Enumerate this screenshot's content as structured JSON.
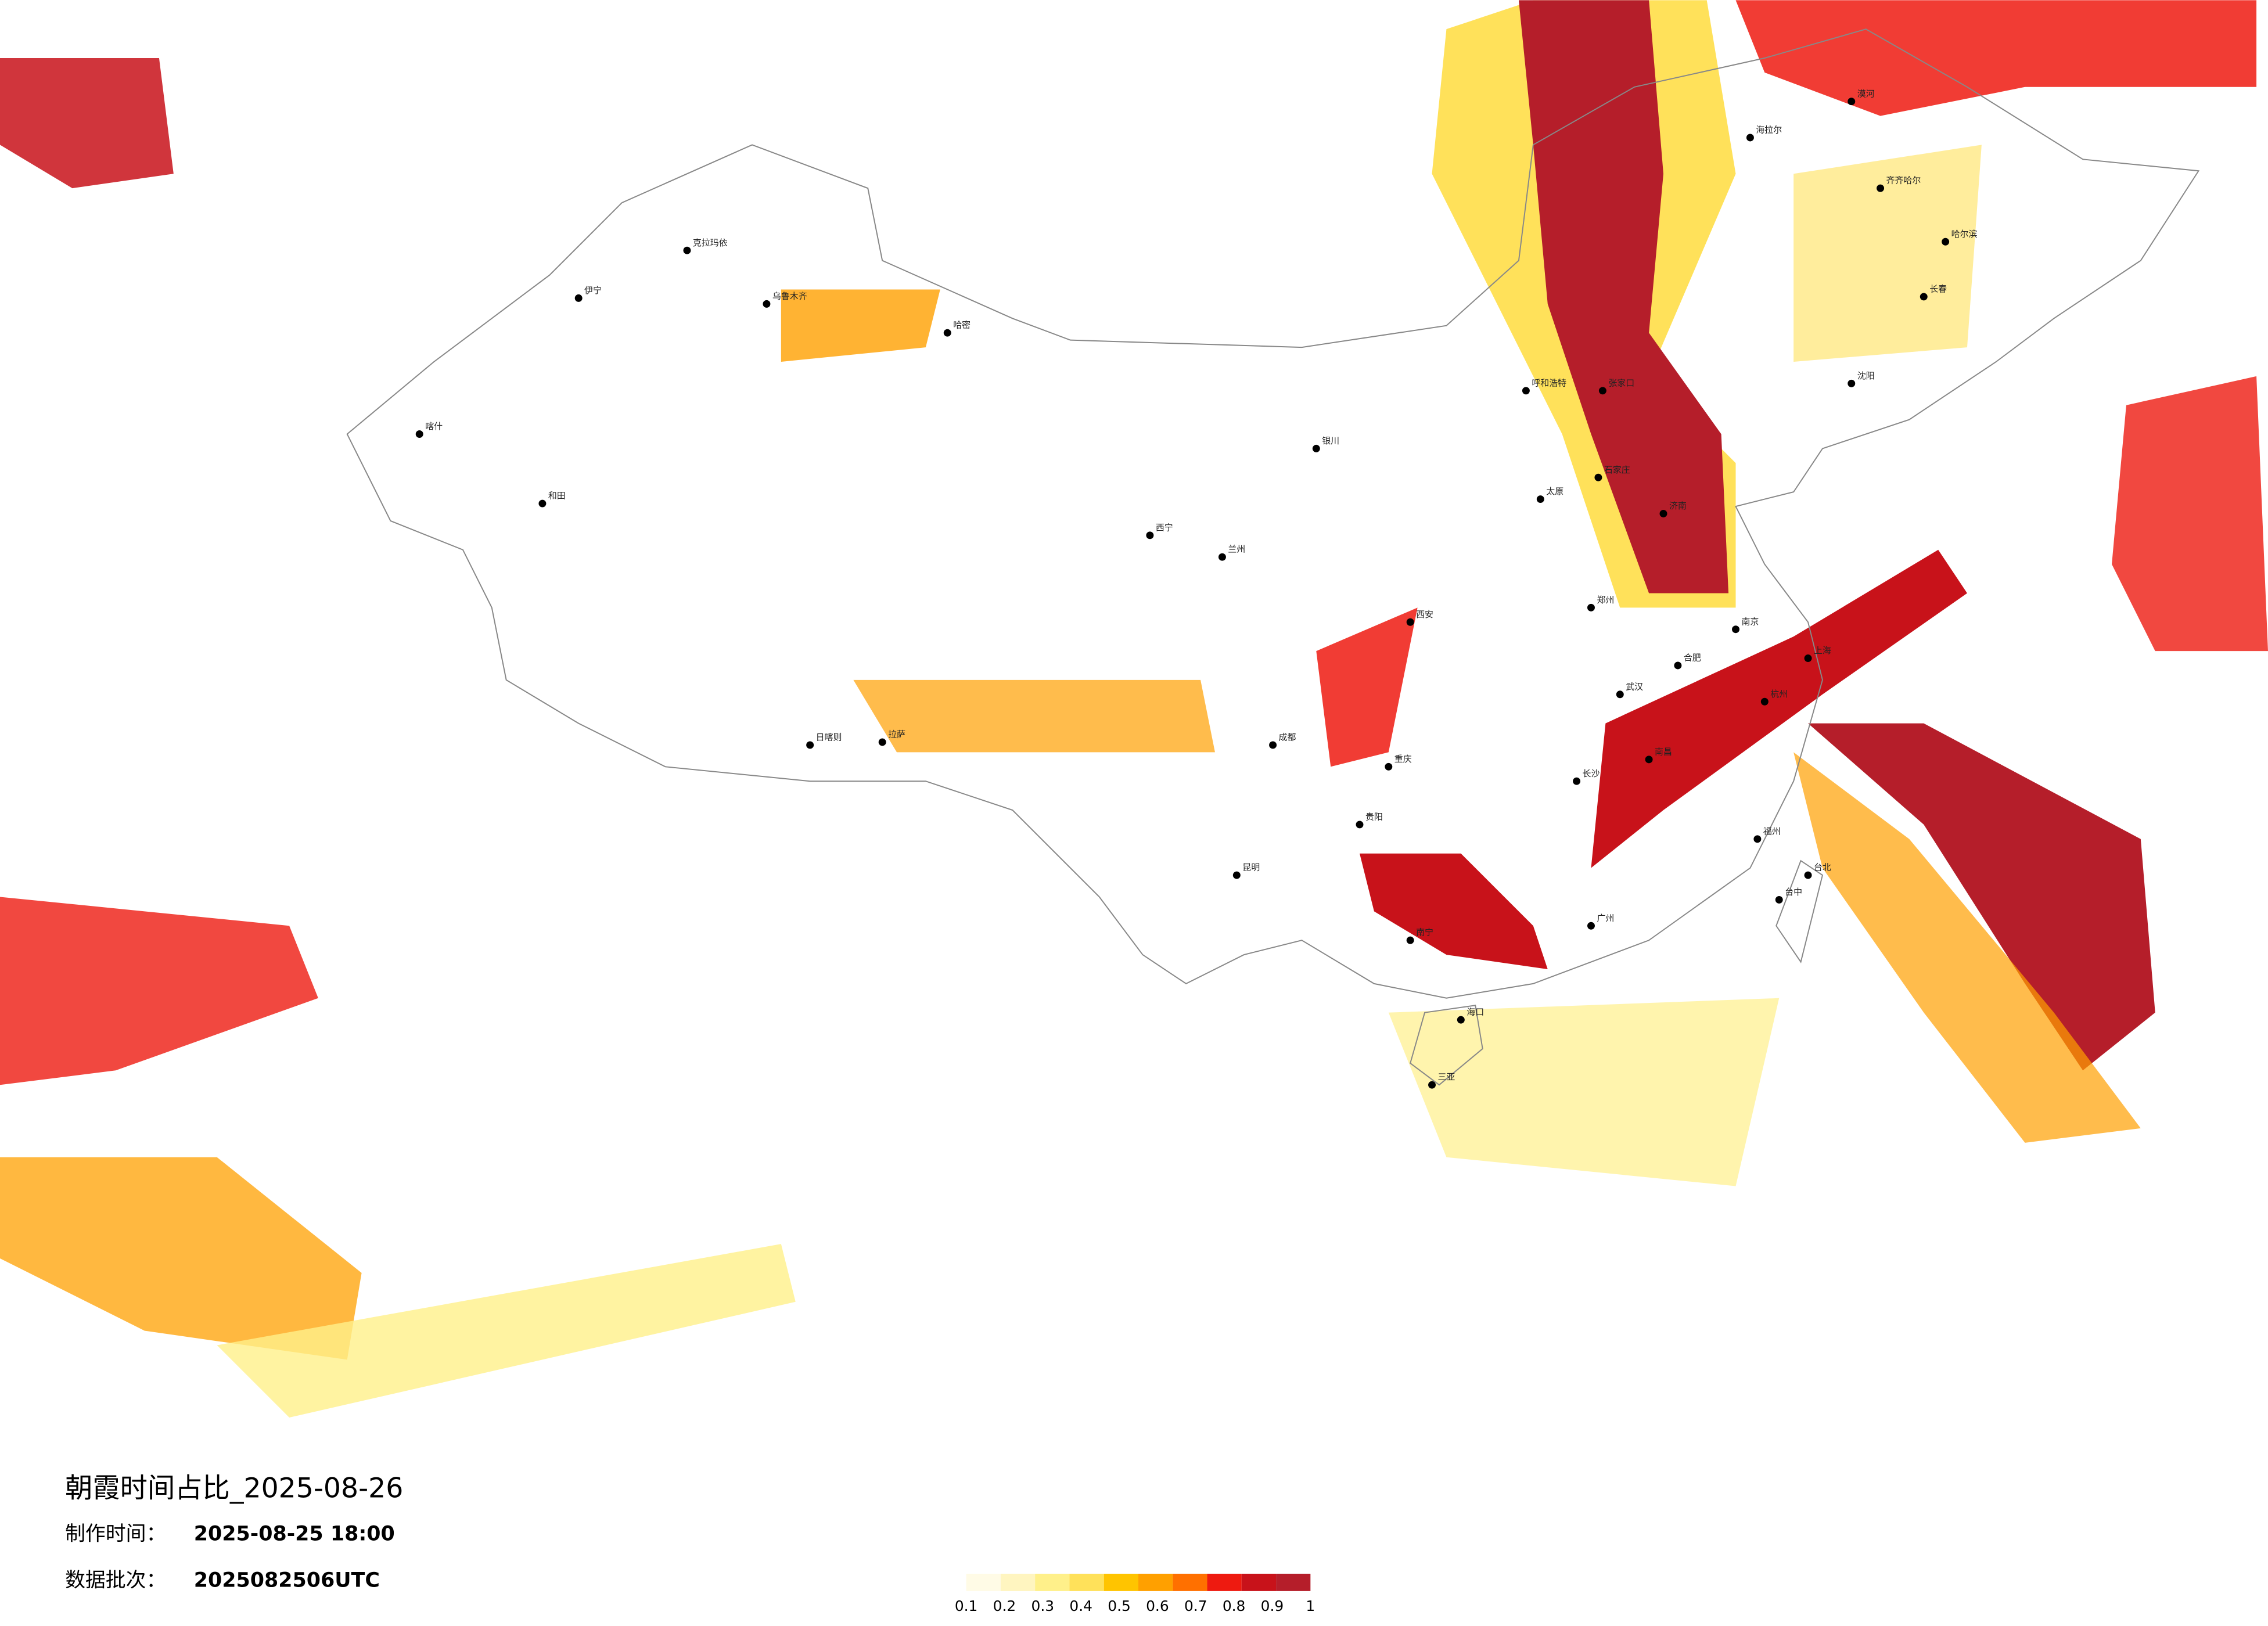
{
  "header": {
    "title": "朝霞时间占比_2025-08-26",
    "made_label": "制作时间：",
    "made_time": "2025-08-25 18:00",
    "batch_label": "数据批次：",
    "batch": "2025082506UTC"
  },
  "legend": {
    "ticks": [
      0.1,
      0.2,
      0.3,
      0.4,
      0.5,
      0.6,
      0.7,
      0.8,
      0.9,
      1
    ],
    "colors": [
      "#fffbe6",
      "#fff5c0",
      "#fff08a",
      "#ffe15a",
      "#ffc400",
      "#ffa000",
      "#ff7000",
      "#ee1a10",
      "#c8121a",
      "#b51e2a"
    ]
  },
  "cities": [
    "漠河",
    "海拉尔",
    "齐齐哈尔",
    "哈尔滨",
    "长春",
    "沈阳",
    "呼和浩特",
    "张家口",
    "石家庄",
    "太原",
    "济南",
    "郑州",
    "西安",
    "银川",
    "兰州",
    "西宁",
    "乌鲁木齐",
    "克拉玛依",
    "伊宁",
    "喀什",
    "和田",
    "哈密",
    "拉萨",
    "日喀则",
    "成都",
    "重庆",
    "贵阳",
    "昆明",
    "南宁",
    "广州",
    "长沙",
    "武汉",
    "南昌",
    "合肥",
    "南京",
    "上海",
    "杭州",
    "福州",
    "台北",
    "台中",
    "海口",
    "三亚"
  ]
}
